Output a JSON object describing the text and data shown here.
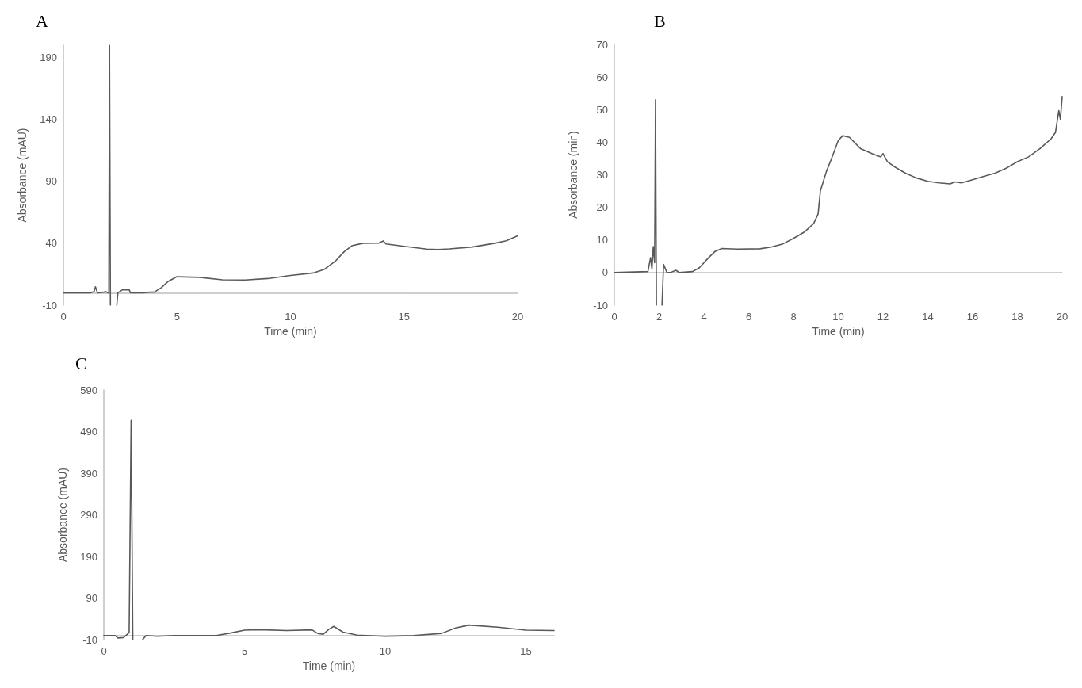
{
  "chart_data": [
    {
      "type": "line",
      "title": "A",
      "xlabel": "Time (min)",
      "ylabel": "Absorbance (mAU)",
      "color": "#595959",
      "marker": "none",
      "xlim": [
        0,
        20
      ],
      "xticks": [
        0,
        5,
        10,
        15,
        20
      ],
      "ylim": [
        -10,
        200
      ],
      "yticks": [
        -10,
        40,
        90,
        140,
        190
      ],
      "x": [
        0,
        1.2,
        1.35,
        1.41,
        1.5,
        1.8,
        1.85,
        1.95,
        2.0,
        2.03,
        2.07,
        2.2,
        2.35,
        2.4,
        2.6,
        2.9,
        2.95,
        3.5,
        3.8,
        4.0,
        4.3,
        4.6,
        5.0,
        6.0,
        7.0,
        8.0,
        9.0,
        10.0,
        11.0,
        11.5,
        12.0,
        12.35,
        12.7,
        13.2,
        13.9,
        14.09,
        14.2,
        15.0,
        16.0,
        16.5,
        17.0,
        18.0,
        19.0,
        19.5,
        20.0
      ],
      "values": [
        0,
        0,
        1,
        4.9,
        0,
        0.5,
        1,
        0,
        0,
        200,
        -10,
        null,
        -10,
        0,
        2.4,
        2.4,
        0,
        0,
        0.5,
        0.5,
        4,
        9,
        13,
        12.5,
        10.5,
        10.3,
        11.5,
        14,
        16,
        19,
        26,
        33,
        38,
        40,
        40.2,
        41.9,
        39.5,
        37.5,
        35.3,
        35,
        35.5,
        37,
        40,
        42,
        46
      ]
    },
    {
      "type": "line",
      "title": "B",
      "xlabel": "Time (min)",
      "ylabel": "Absorbance (min)",
      "color": "#595959",
      "marker": "none",
      "xlim": [
        0,
        20
      ],
      "xticks": [
        0,
        2,
        4,
        6,
        8,
        10,
        12,
        14,
        16,
        18,
        20
      ],
      "ylim": [
        -10,
        70
      ],
      "yticks": [
        -10,
        0,
        10,
        20,
        30,
        40,
        50,
        60,
        70
      ],
      "x": [
        0,
        1.5,
        1.62,
        1.68,
        1.74,
        1.8,
        1.84,
        1.88,
        2.0,
        2.13,
        2.2,
        2.35,
        2.5,
        2.75,
        2.9,
        3.5,
        3.8,
        4.0,
        4.2,
        4.5,
        4.8,
        5.5,
        6.5,
        7.0,
        7.5,
        8.0,
        8.5,
        8.9,
        9.1,
        9.2,
        9.47,
        9.7,
        10.0,
        10.2,
        10.5,
        11.0,
        11.5,
        11.9,
        12.0,
        12.2,
        12.5,
        13.0,
        13.5,
        14.0,
        14.5,
        15.0,
        15.2,
        15.5,
        16.0,
        16.5,
        17.0,
        17.5,
        18.0,
        18.5,
        19.0,
        19.5,
        19.7,
        19.85,
        19.92,
        20.0
      ],
      "values": [
        0,
        0.3,
        4.6,
        1,
        8,
        3,
        53,
        -10,
        null,
        -10,
        2.5,
        0,
        0,
        0.7,
        0,
        0.3,
        1.5,
        3,
        4.5,
        6.5,
        7.4,
        7.2,
        7.3,
        7.8,
        8.7,
        10.5,
        12.5,
        15,
        18,
        25,
        31,
        35,
        40.5,
        42,
        41.5,
        38,
        36.5,
        35.5,
        36.5,
        34,
        32.5,
        30.5,
        29,
        28,
        27.5,
        27.2,
        27.8,
        27.5,
        28.5,
        29.5,
        30.5,
        32,
        34,
        35.5,
        38,
        41,
        43,
        49.7,
        47,
        54
      ]
    },
    {
      "type": "line",
      "title": "C",
      "xlabel": "Time (min)",
      "ylabel": "Absorbance (mAU)",
      "color": "#595959",
      "marker": "none",
      "xlim": [
        0,
        16
      ],
      "xticks": [
        0,
        5,
        10,
        15
      ],
      "ylim": [
        -10,
        590
      ],
      "yticks": [
        -10,
        90,
        190,
        290,
        390,
        490,
        590
      ],
      "x": [
        0,
        0.4,
        0.5,
        0.7,
        0.9,
        0.97,
        1.03,
        1.2,
        1.38,
        1.5,
        1.9,
        2.5,
        4.0,
        4.5,
        5.0,
        5.5,
        6.5,
        7.4,
        7.6,
        7.8,
        8.0,
        8.17,
        8.5,
        9.0,
        10.0,
        11.0,
        12.0,
        12.5,
        12.97,
        14.0,
        15.0,
        16.0
      ],
      "values": [
        0,
        0,
        -6,
        -5,
        7,
        517,
        -10,
        null,
        -10,
        0,
        -2,
        0,
        0,
        6,
        13,
        14,
        12,
        13.5,
        5,
        3,
        15,
        22,
        8,
        1,
        -2,
        0,
        5,
        18,
        25,
        20,
        13,
        12
      ]
    }
  ]
}
